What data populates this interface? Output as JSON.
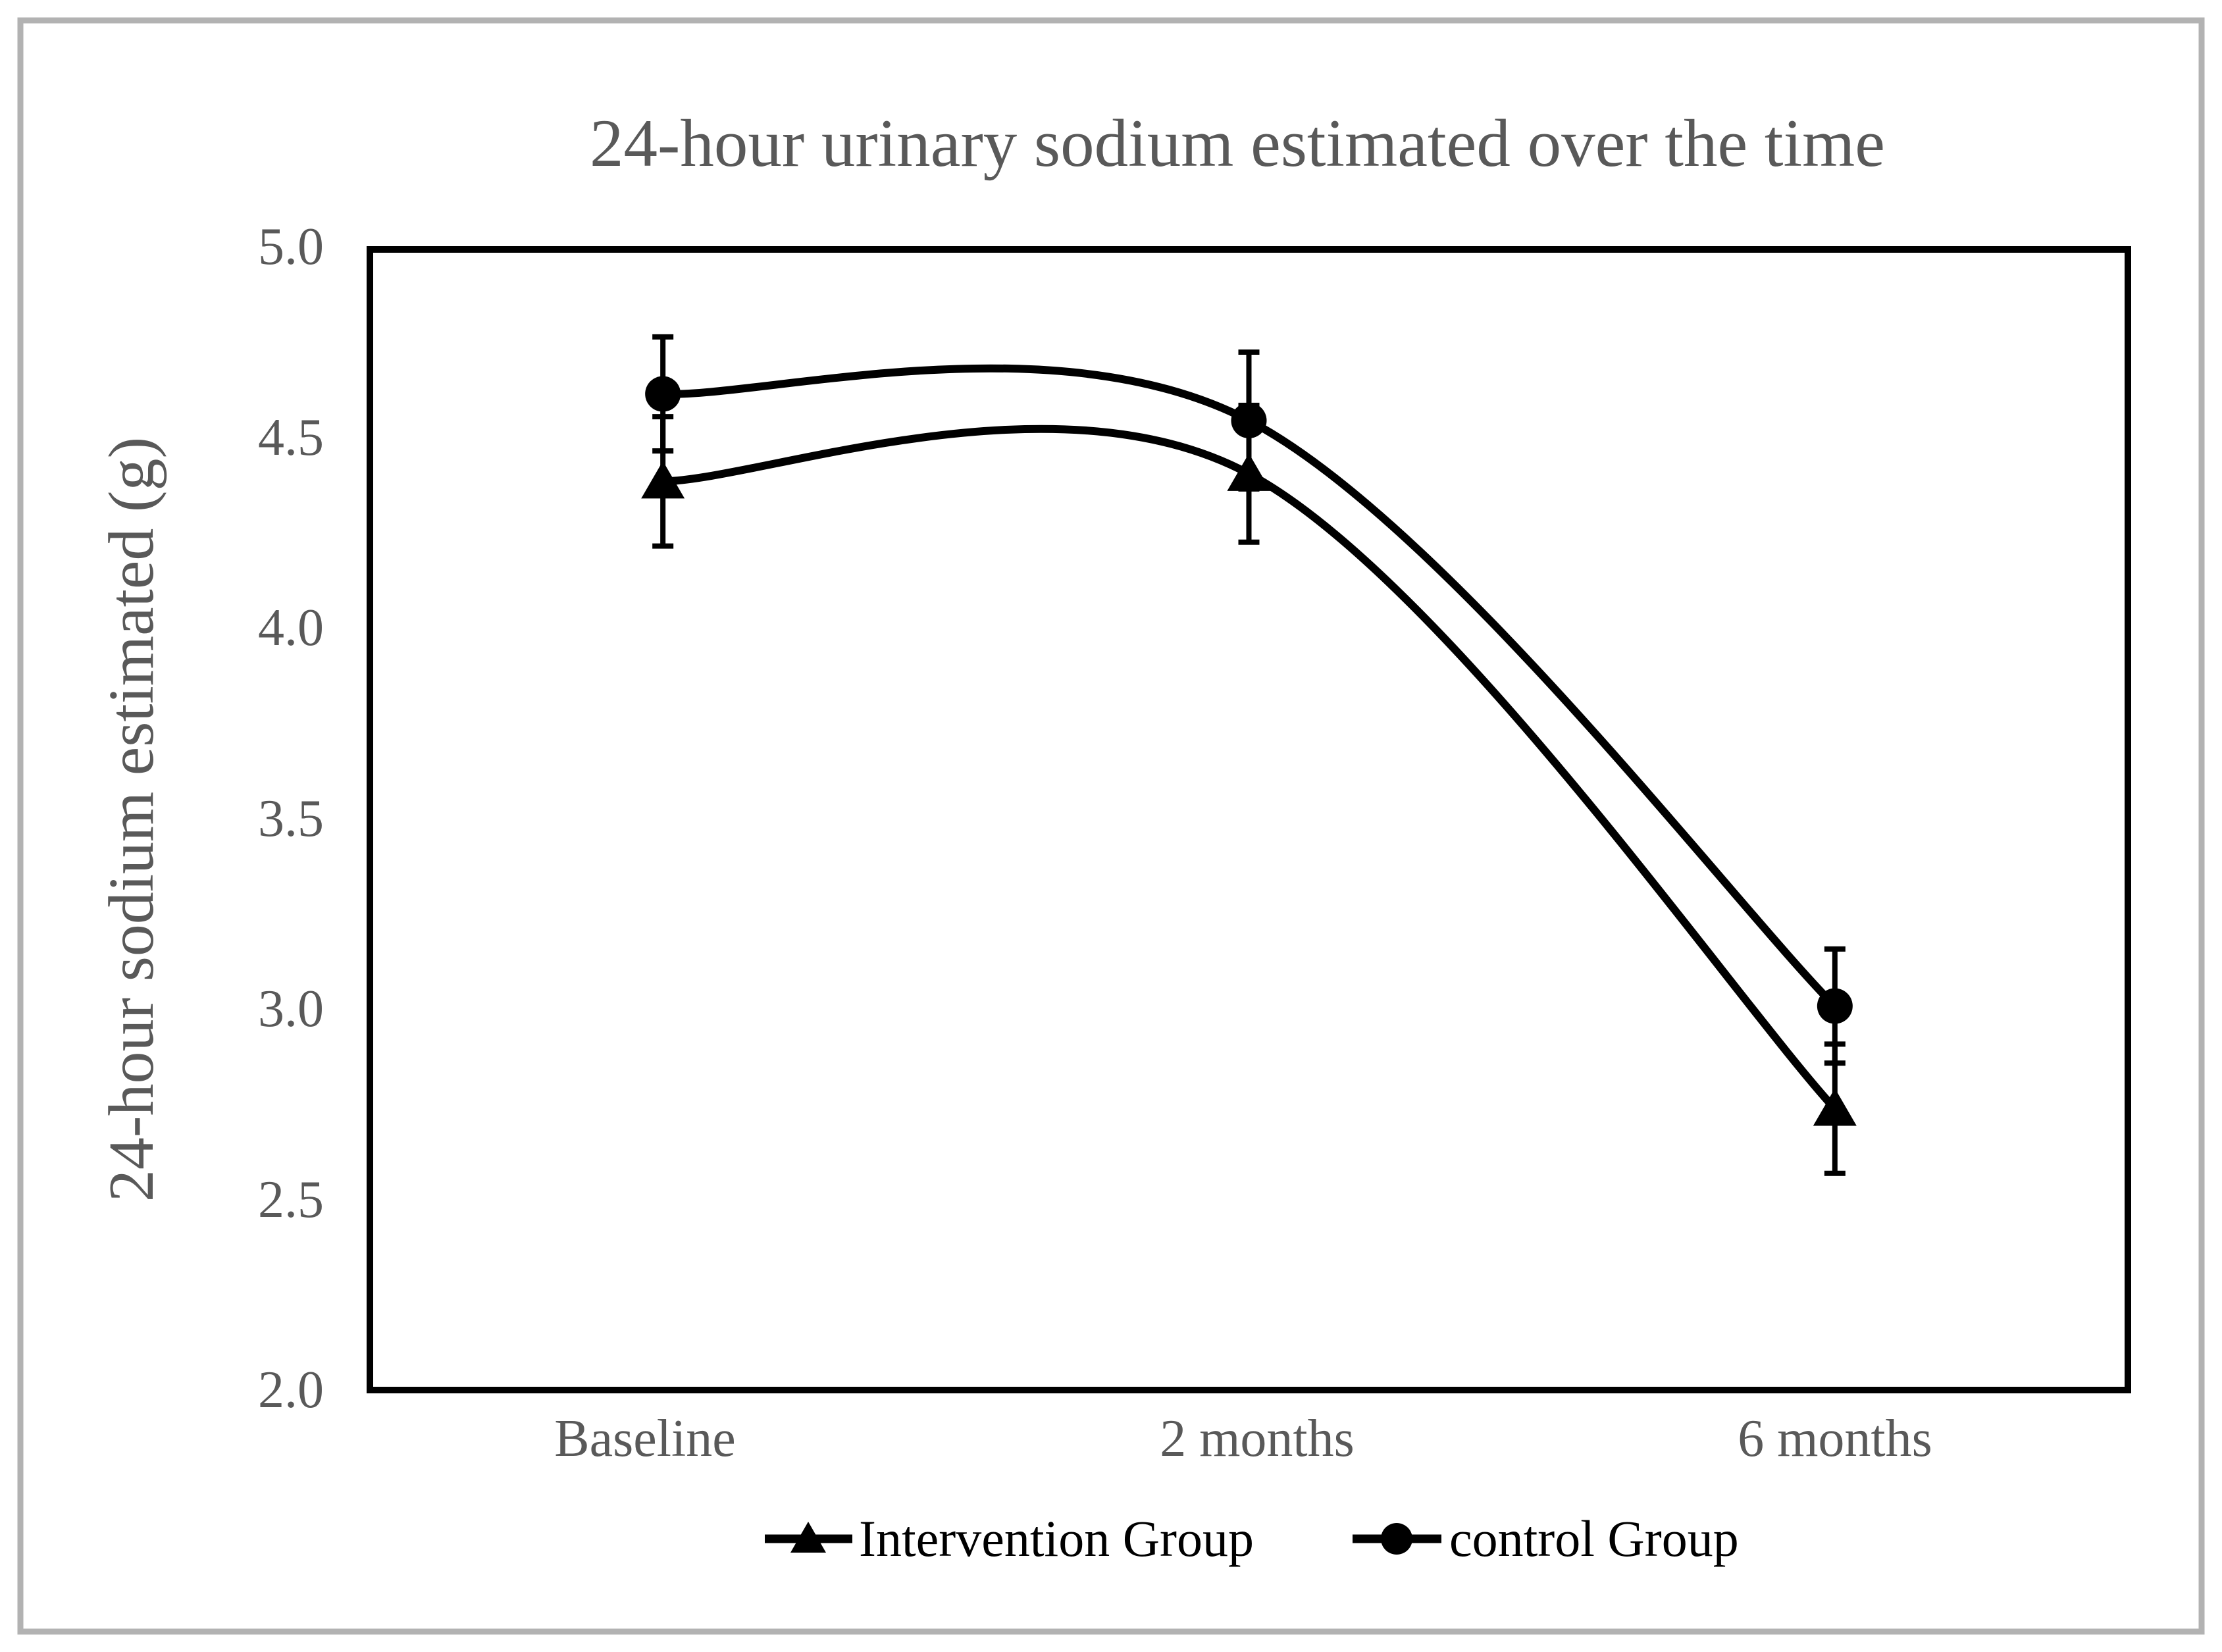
{
  "title": "24-hour urinary sodium estimated over the time",
  "axes": {
    "y": {
      "label": "24-hour sodium estimated (g)",
      "ticks": [
        "5.0",
        "4.5",
        "4.0",
        "3.5",
        "3.0",
        "2.5",
        "2.0"
      ]
    },
    "x": {
      "categories": [
        "Baseline",
        "2 months",
        "6 months"
      ]
    }
  },
  "legend": [
    {
      "label": "Intervention Group",
      "marker": "triangle"
    },
    {
      "label": "control Group",
      "marker": "circle"
    }
  ],
  "colors": {
    "text_gray": "#595959",
    "series_black": "#000000",
    "outer_border_gray": "#b2b2b2"
  },
  "chart_data": {
    "type": "line",
    "smooth": true,
    "error_bars": true,
    "categories": [
      "Baseline",
      "2 months",
      "6 months"
    ],
    "series": [
      {
        "name": "Intervention Group",
        "marker": "triangle",
        "values": [
          4.39,
          4.41,
          2.74
        ],
        "errors": [
          0.17,
          0.18,
          0.17
        ]
      },
      {
        "name": "control Group",
        "marker": "circle",
        "values": [
          4.62,
          4.55,
          3.01
        ],
        "errors": [
          0.15,
          0.18,
          0.15
        ]
      }
    ],
    "title": "24-hour urinary sodium estimated over the time",
    "xlabel": "",
    "ylabel": "24-hour sodium estimated (g)",
    "ylim": [
      2.0,
      5.0
    ],
    "ytick_step": 0.5,
    "grid": false,
    "legend_position": "bottom"
  }
}
